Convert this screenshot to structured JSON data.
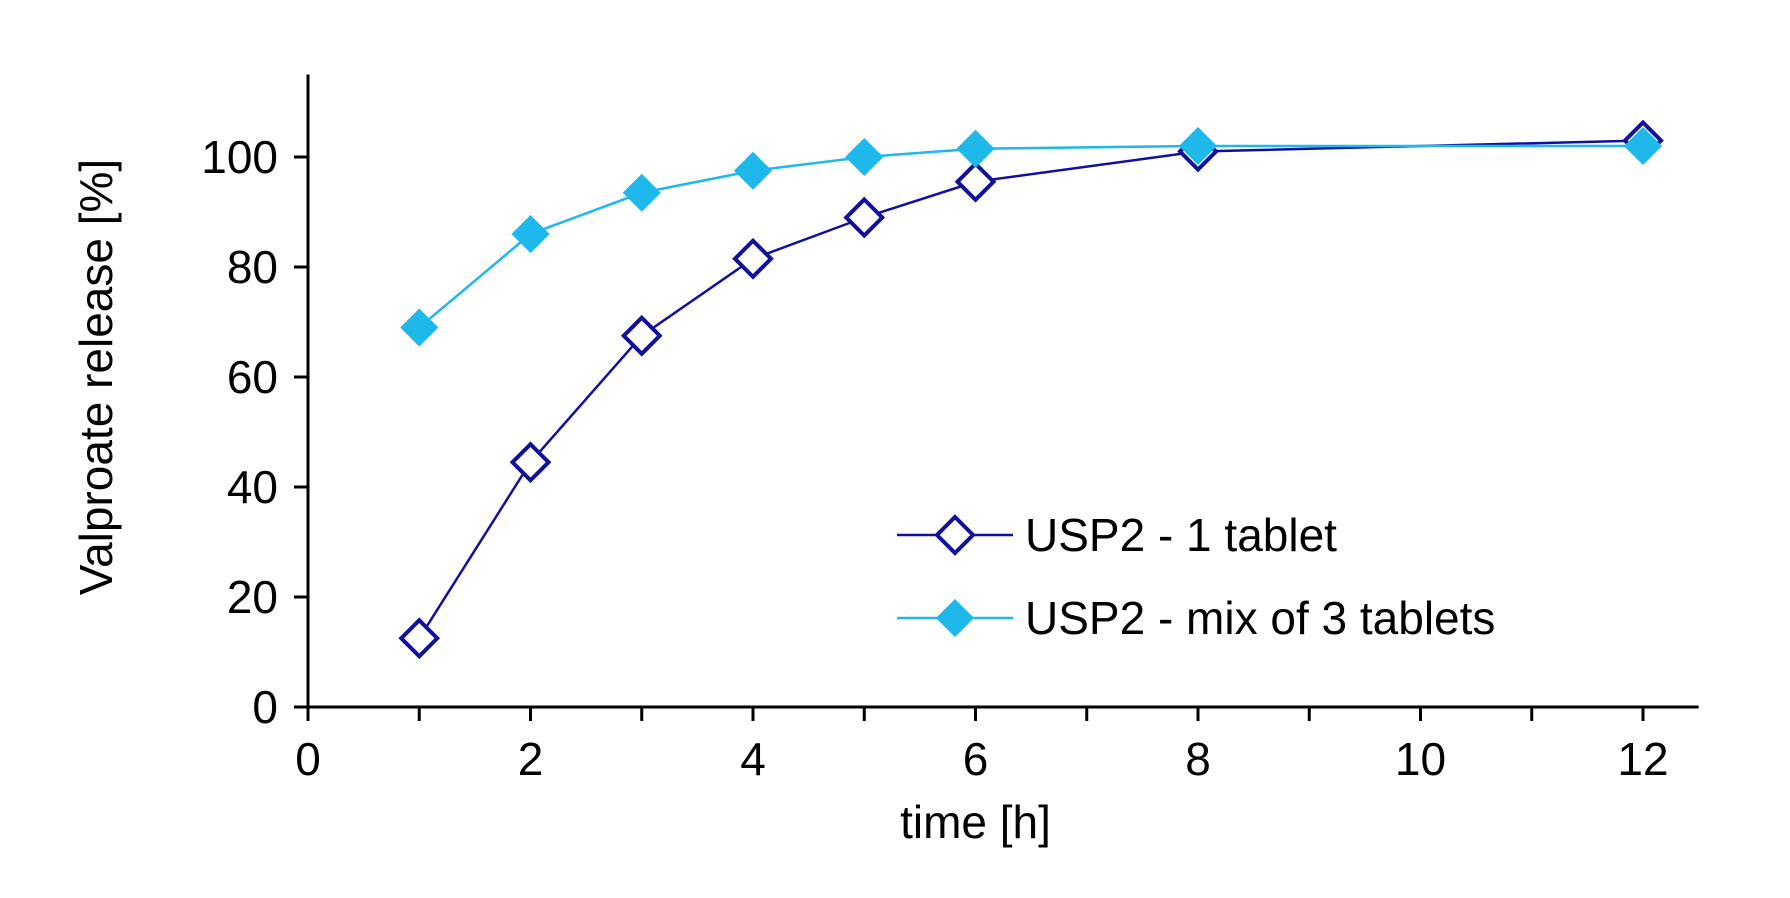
{
  "chart_data": {
    "type": "line",
    "title": "",
    "xlabel": "time [h]",
    "ylabel": "Valproate release [%]",
    "xlim": [
      0,
      12.5
    ],
    "ylim": [
      0,
      115
    ],
    "x_ticks_major": [
      0,
      2,
      4,
      6,
      8,
      10,
      12
    ],
    "x_ticks_minor": [
      1,
      3,
      5,
      7,
      9,
      11
    ],
    "y_ticks": [
      0,
      20,
      40,
      60,
      80,
      100
    ],
    "grid": false,
    "legend_position": "lower-right",
    "series": [
      {
        "name": "USP2 - 1 tablet",
        "color": "#10109a",
        "marker": "diamond-open",
        "x": [
          1,
          2,
          3,
          4,
          5,
          6,
          8,
          12
        ],
        "y": [
          12.5,
          44.5,
          67.5,
          81.5,
          89,
          95.5,
          101,
          103
        ]
      },
      {
        "name": "USP2 - mix of 3 tablets",
        "color": "#1fb8ea",
        "marker": "diamond-filled",
        "x": [
          1,
          2,
          3,
          4,
          5,
          6,
          8,
          12
        ],
        "y": [
          69,
          86,
          93.5,
          97.5,
          100,
          101.5,
          102,
          102
        ]
      }
    ]
  }
}
